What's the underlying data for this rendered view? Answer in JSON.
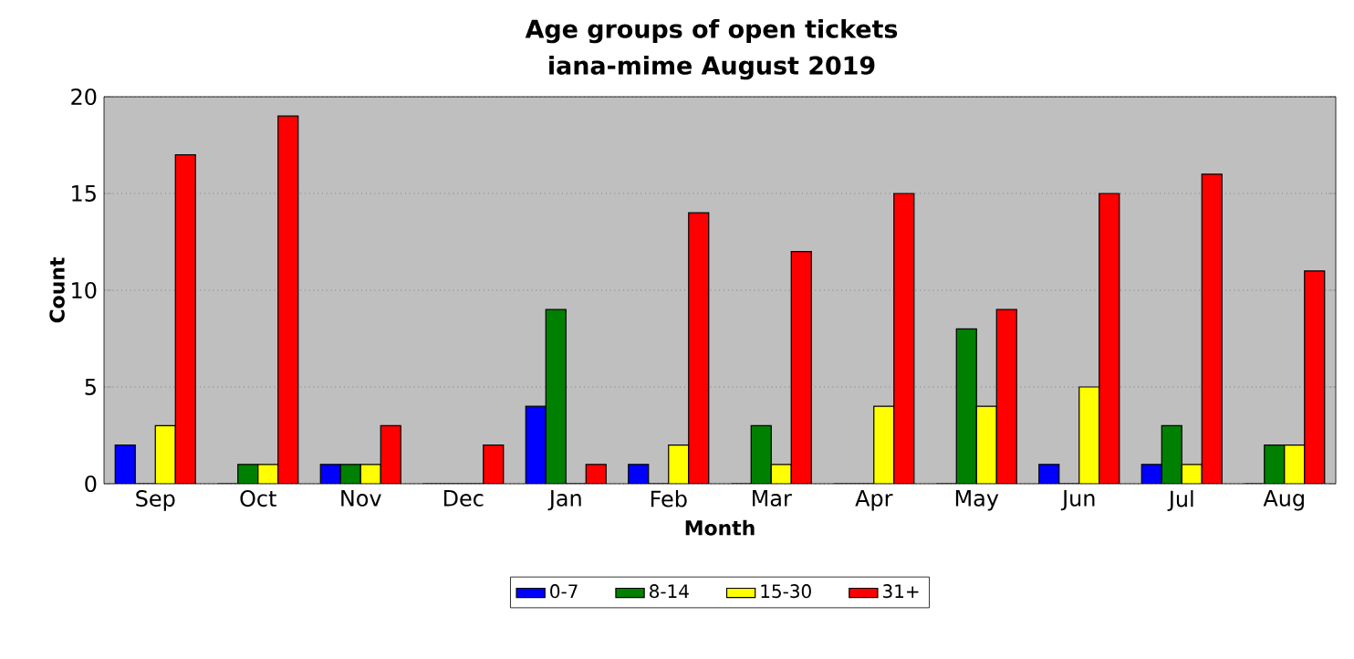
{
  "chart_data": {
    "type": "bar",
    "title": "Age groups of open tickets",
    "subtitle": "iana-mime August 2019",
    "xlabel": "Month",
    "ylabel": "Count",
    "categories": [
      "Sep",
      "Oct",
      "Nov",
      "Dec",
      "Jan",
      "Feb",
      "Mar",
      "Apr",
      "May",
      "Jun",
      "Jul",
      "Aug"
    ],
    "series": [
      {
        "name": "0-7",
        "color": "#0000ff",
        "values": [
          2,
          0,
          1,
          0,
          4,
          1,
          0,
          0,
          0,
          1,
          1,
          0
        ]
      },
      {
        "name": "8-14",
        "color": "#008000",
        "values": [
          0,
          1,
          1,
          0,
          9,
          0,
          3,
          0,
          8,
          0,
          3,
          2
        ]
      },
      {
        "name": "15-30",
        "color": "#ffff00",
        "values": [
          3,
          1,
          1,
          0,
          0,
          2,
          1,
          4,
          4,
          5,
          1,
          2
        ]
      },
      {
        "name": "31+",
        "color": "#ff0000",
        "values": [
          17,
          19,
          3,
          2,
          1,
          14,
          12,
          15,
          9,
          15,
          16,
          11
        ]
      }
    ],
    "ylim": [
      0,
      20
    ],
    "yticks": [
      0,
      5,
      10,
      15,
      20
    ],
    "grid": "y",
    "legend": "bottom"
  }
}
